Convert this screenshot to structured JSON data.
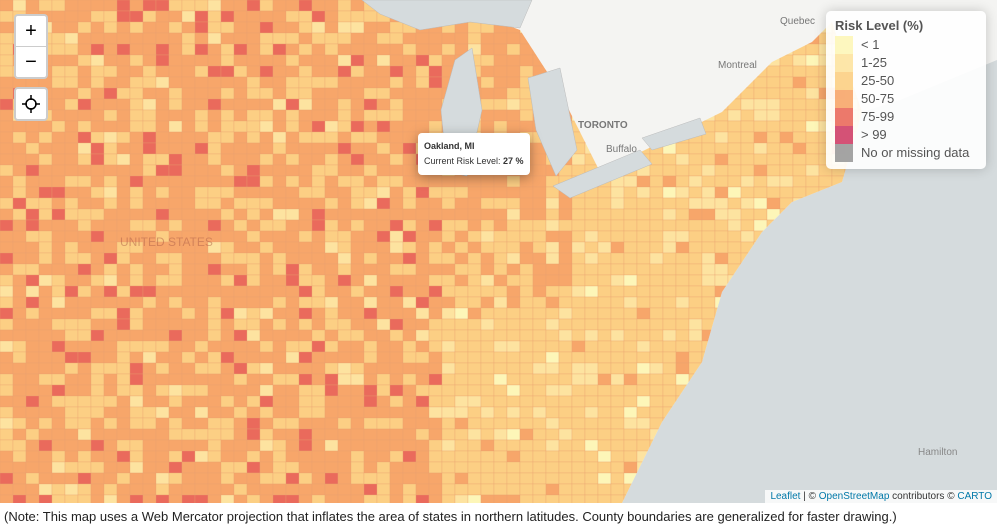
{
  "map": {
    "places": [
      "Quebec",
      "Montreal",
      "TORONTO",
      "Buffalo",
      "Hamilton",
      "UNITED STATES"
    ],
    "zoom_in": "+",
    "zoom_out": "−"
  },
  "tooltip": {
    "title": "Oakland, MI",
    "text": "Current Risk Level:",
    "value": "27 %"
  },
  "legend": {
    "title": "Risk Level (%)",
    "items": [
      {
        "label": "< 1",
        "color": "#fdf6b8"
      },
      {
        "label": "1-25",
        "color": "#fde3a0"
      },
      {
        "label": "25-50",
        "color": "#fccf84"
      },
      {
        "label": "50-75",
        "color": "#f7a66a"
      },
      {
        "label": "75-99",
        "color": "#ea6a5c"
      },
      {
        "label": "> 99",
        "color": "#cf3f68"
      },
      {
        "label": "No or missing data",
        "color": "#9a9a9a"
      }
    ]
  },
  "attribution": {
    "leaflet": "Leaflet",
    "sep": "| ©",
    "osm": "OpenStreetMap",
    "contrib": "contributors ©",
    "carto": "CARTO"
  },
  "note": "(Note: This map uses a Web Mercator projection that inflates the area of states in northern latitudes. County boundaries are generalized for faster drawing.)"
}
